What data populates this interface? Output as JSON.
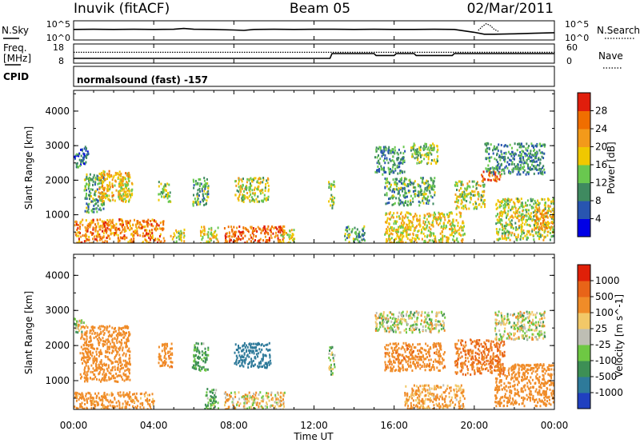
{
  "header": {
    "station": "Inuvik (fitACF)",
    "beam": "Beam 05",
    "date": "02/Mar/2011"
  },
  "noise_panel": {
    "left_label": "N.Sky",
    "right_label": "N.Search",
    "left_ticks": [
      "10^5",
      "10^0"
    ],
    "right_ticks": [
      "10^5",
      "10^0"
    ],
    "series": [
      {
        "name": "N.Sky",
        "style": "solid",
        "x": [
          0,
          1,
          2,
          3,
          4,
          5,
          5.5,
          6,
          7,
          8,
          8.5,
          9,
          10,
          11,
          12,
          13,
          14,
          15,
          16,
          17,
          18,
          19,
          20,
          20.5,
          21,
          22,
          23,
          24
        ],
        "y": [
          0.55,
          0.56,
          0.55,
          0.56,
          0.55,
          0.56,
          0.6,
          0.56,
          0.55,
          0.52,
          0.5,
          0.55,
          0.56,
          0.55,
          0.56,
          0.56,
          0.55,
          0.56,
          0.55,
          0.55,
          0.56,
          0.55,
          0.4,
          0.3,
          0.3,
          0.32,
          0.35,
          0.38
        ]
      },
      {
        "name": "N.Search",
        "style": "dotted",
        "x": [
          20.2,
          20.4,
          20.6,
          20.8,
          21.0,
          21.2
        ],
        "y": [
          0.5,
          0.7,
          0.85,
          0.75,
          0.55,
          0.45
        ]
      }
    ]
  },
  "freq_panel": {
    "left_label": "Freq.",
    "left_unit": "[MHz]",
    "right_label": "Nave",
    "left_ticks": [
      "18",
      "8"
    ],
    "right_ticks": [
      "60",
      "0"
    ],
    "series": [
      {
        "name": "Freq",
        "style": "solid",
        "x": [
          0,
          12.8,
          12.9,
          15.0,
          15.1,
          16.0,
          16.1,
          17.0,
          17.1,
          18.9,
          19.0,
          24
        ],
        "y": [
          10.5,
          10.5,
          13.0,
          13.0,
          12.0,
          12.0,
          13.0,
          13.0,
          12.0,
          12.0,
          13.0,
          13.0
        ]
      },
      {
        "name": "Nave",
        "style": "dotted",
        "x": [
          0,
          24
        ],
        "y": [
          34,
          34
        ]
      }
    ]
  },
  "cpid_label": "CPID",
  "cpid_text": "normalsound (fast) -157",
  "power_panel": {
    "ylabel": "Slant Range [km]",
    "yticks": [
      "4000",
      "3000",
      "2000",
      "1000"
    ],
    "ylim": [
      180,
      4600
    ],
    "colorbar_label": "Power [dB]",
    "colorbar_ticks": [
      "28",
      "24",
      "20",
      "16",
      "12",
      "8",
      "4"
    ]
  },
  "velocity_panel": {
    "ylabel": "Slant Range [km]",
    "yticks": [
      "4000",
      "3000",
      "2000",
      "1000"
    ],
    "ylim": [
      180,
      4600
    ],
    "colorbar_label": "Velocity [m s^-1]",
    "colorbar_ticks": [
      "1000",
      "500",
      "100",
      "25",
      "-25",
      "-100",
      "-500",
      "-1000"
    ]
  },
  "xaxis": {
    "label": "Time UT",
    "ticks": [
      "00:00",
      "04:00",
      "08:00",
      "12:00",
      "16:00",
      "20:00",
      "00:00"
    ]
  },
  "colors": {
    "power_scale": [
      "#0000e6",
      "#2855b0",
      "#3f8a60",
      "#69c84f",
      "#f0c800",
      "#f39a1a",
      "#f06e00",
      "#e01e0c"
    ],
    "velocity_scale": [
      "#2040c0",
      "#2e7a9a",
      "#3d8f55",
      "#6ec843",
      "#bebeb4",
      "#f2c868",
      "#f08c28",
      "#e86418",
      "#e02008"
    ]
  },
  "chart_data": [
    {
      "type": "heatmap",
      "title": "Power",
      "x_unit": "hours UT",
      "y_unit": "km",
      "xlim": [
        0,
        24
      ],
      "ylim": [
        180,
        4600
      ],
      "colorbar": {
        "label": "Power [dB]",
        "ticks": [
          28,
          24,
          20,
          16,
          12,
          8,
          4
        ]
      },
      "scatter_regions": [
        {
          "x": [
            0.0,
            0.7
          ],
          "y": [
            2400,
            3000
          ],
          "value": 8
        },
        {
          "x": [
            0.5,
            1.5
          ],
          "y": [
            1100,
            2200
          ],
          "value": 12
        },
        {
          "x": [
            1.2,
            2.8
          ],
          "y": [
            1400,
            2300
          ],
          "value": 20
        },
        {
          "x": [
            2.2,
            2.9
          ],
          "y": [
            1500,
            2200
          ],
          "value": 18
        },
        {
          "x": [
            0.0,
            4.5
          ],
          "y": [
            200,
            900
          ],
          "value": 24
        },
        {
          "x": [
            4.2,
            4.8
          ],
          "y": [
            1400,
            2000
          ],
          "value": 14
        },
        {
          "x": [
            4.8,
            5.5
          ],
          "y": [
            200,
            600
          ],
          "value": 16
        },
        {
          "x": [
            5.9,
            6.7
          ],
          "y": [
            1300,
            2100
          ],
          "value": 12
        },
        {
          "x": [
            6.3,
            7.2
          ],
          "y": [
            200,
            700
          ],
          "value": 18
        },
        {
          "x": [
            8.0,
            9.7
          ],
          "y": [
            1400,
            2100
          ],
          "value": 16
        },
        {
          "x": [
            7.5,
            10.5
          ],
          "y": [
            200,
            700
          ],
          "value": 26
        },
        {
          "x": [
            10.3,
            11.0
          ],
          "y": [
            200,
            600
          ],
          "value": 18
        },
        {
          "x": [
            12.7,
            13.0
          ],
          "y": [
            1200,
            2000
          ],
          "value": 14
        },
        {
          "x": [
            13.5,
            14.5
          ],
          "y": [
            200,
            700
          ],
          "value": 12
        },
        {
          "x": [
            15.0,
            16.5
          ],
          "y": [
            2200,
            3000
          ],
          "value": 10
        },
        {
          "x": [
            15.5,
            18.0
          ],
          "y": [
            1300,
            2100
          ],
          "value": 12
        },
        {
          "x": [
            16.8,
            18.2
          ],
          "y": [
            2500,
            3100
          ],
          "value": 14
        },
        {
          "x": [
            15.5,
            19.5
          ],
          "y": [
            200,
            1100
          ],
          "value": 18
        },
        {
          "x": [
            19.0,
            20.5
          ],
          "y": [
            1200,
            2000
          ],
          "value": 16
        },
        {
          "x": [
            20.3,
            21.3
          ],
          "y": [
            2000,
            2300
          ],
          "value": 26
        },
        {
          "x": [
            20.5,
            23.5
          ],
          "y": [
            2200,
            3100
          ],
          "value": 10
        },
        {
          "x": [
            21.0,
            24.0
          ],
          "y": [
            300,
            1500
          ],
          "value": 16
        },
        {
          "x": [
            23.0,
            24.0
          ],
          "y": [
            600,
            1200
          ],
          "value": 22
        }
      ]
    },
    {
      "type": "heatmap",
      "title": "Velocity",
      "x_unit": "hours UT",
      "y_unit": "km",
      "xlim": [
        0,
        24
      ],
      "ylim": [
        180,
        4600
      ],
      "colorbar": {
        "label": "Velocity [m s^-1]",
        "ticks": [
          1000,
          500,
          100,
          25,
          -25,
          -100,
          -500,
          -1000
        ]
      },
      "scatter_regions": [
        {
          "x": [
            0.0,
            0.6
          ],
          "y": [
            2400,
            2800
          ],
          "value": 0
        },
        {
          "x": [
            0.3,
            2.8
          ],
          "y": [
            1000,
            2600
          ],
          "value": -300
        },
        {
          "x": [
            0.0,
            4.0
          ],
          "y": [
            200,
            700
          ],
          "value": -200
        },
        {
          "x": [
            4.2,
            4.9
          ],
          "y": [
            1400,
            2100
          ],
          "value": -400
        },
        {
          "x": [
            5.9,
            6.7
          ],
          "y": [
            1300,
            2100
          ],
          "value": 150
        },
        {
          "x": [
            6.5,
            7.2
          ],
          "y": [
            200,
            800
          ],
          "value": 80
        },
        {
          "x": [
            8.0,
            9.8
          ],
          "y": [
            1400,
            2100
          ],
          "value": 700
        },
        {
          "x": [
            7.5,
            10.5
          ],
          "y": [
            200,
            700
          ],
          "value": -50
        },
        {
          "x": [
            12.7,
            13.0
          ],
          "y": [
            1200,
            2000
          ],
          "value": 60
        },
        {
          "x": [
            15.0,
            18.5
          ],
          "y": [
            2400,
            3000
          ],
          "value": 0
        },
        {
          "x": [
            15.5,
            18.5
          ],
          "y": [
            1300,
            2100
          ],
          "value": -400
        },
        {
          "x": [
            16.5,
            19.5
          ],
          "y": [
            200,
            900
          ],
          "value": -150
        },
        {
          "x": [
            19.0,
            21.5
          ],
          "y": [
            1200,
            2200
          ],
          "value": -500
        },
        {
          "x": [
            21.0,
            23.5
          ],
          "y": [
            2200,
            3000
          ],
          "value": 0
        },
        {
          "x": [
            21.0,
            24.0
          ],
          "y": [
            300,
            1500
          ],
          "value": -250
        }
      ]
    }
  ]
}
